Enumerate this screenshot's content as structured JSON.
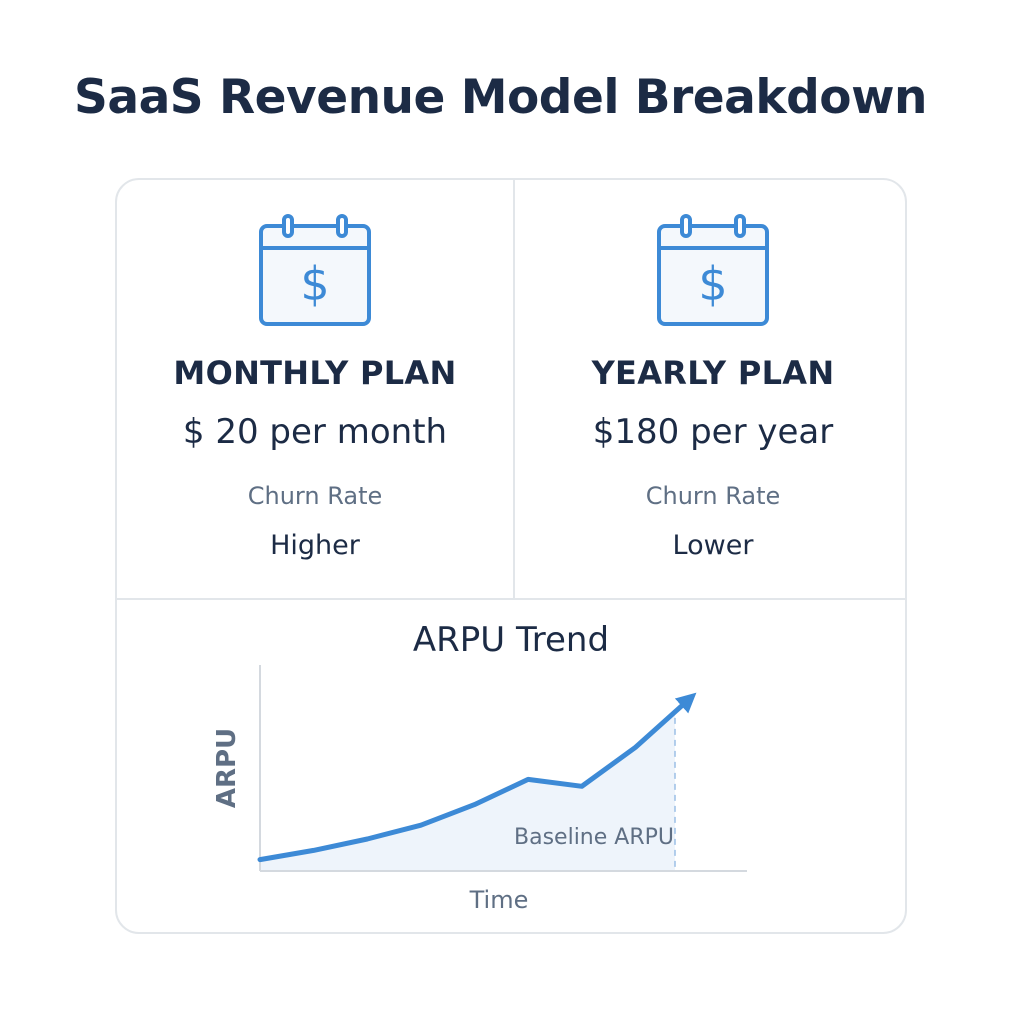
{
  "title": "SaaS Revenue Model Breakdown",
  "colors": {
    "accent": "#3d8ad6",
    "text": "#1c2b45",
    "muted": "#5f6f84",
    "border": "#e2e6ea",
    "fill": "#eef4fb"
  },
  "plans": [
    {
      "icon": "calendar-dollar-icon",
      "name": "MONTHLY PLAN",
      "price": "$ 20 per month",
      "churn_label": "Churn Rate",
      "churn_value": "Higher"
    },
    {
      "icon": "calendar-dollar-icon",
      "name": "YEARLY PLAN",
      "price": "$180 per year",
      "churn_label": "Churn Rate",
      "churn_value": "Lower"
    }
  ],
  "chart_data": {
    "type": "area",
    "title": "ARPU Trend",
    "xlabel": "Time",
    "ylabel": "ARPU",
    "annotation": "Baseline ARPU",
    "x": [
      0,
      1,
      2,
      3,
      4,
      5,
      6,
      7,
      8
    ],
    "values": [
      1.0,
      1.8,
      2.8,
      4.0,
      5.8,
      8.0,
      7.4,
      10.8,
      15.0
    ],
    "ylim": [
      0,
      18
    ],
    "grid": false,
    "legend": "none"
  }
}
